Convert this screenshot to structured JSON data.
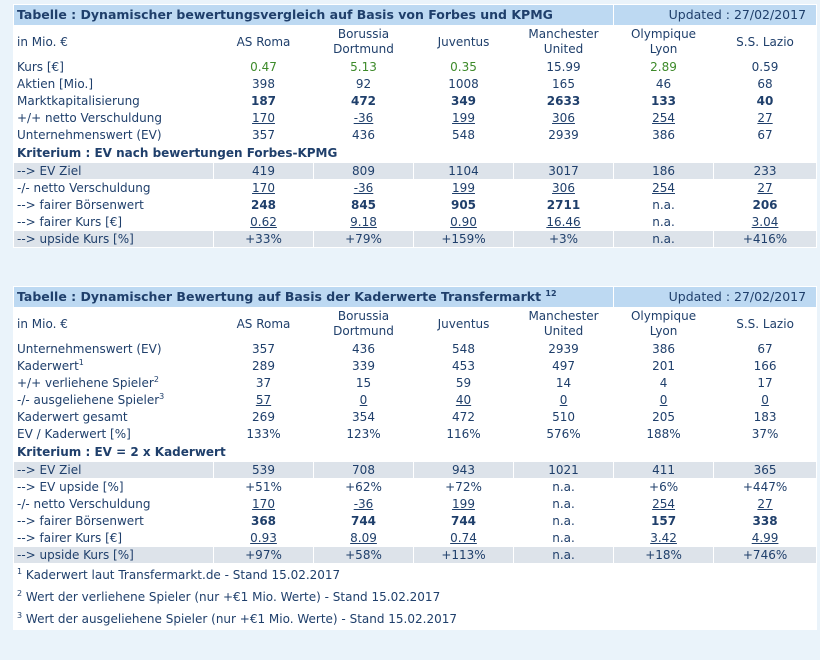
{
  "t1": {
    "title": "Tabelle : Dynamischer bewertungsvergleich auf Basis von Forbes und KPMG",
    "updated": "Updated : 27/02/2017",
    "unit": "in Mio. €",
    "clubs": [
      "AS Roma",
      "Borussia Dortmund",
      "Juventus",
      "Manchester United",
      "Olympique Lyon",
      "S.S. Lazio"
    ],
    "rows": [
      {
        "label": "Kurs [€]",
        "vals": [
          "0.47",
          "5.13",
          "0.35",
          "15.99",
          "2.89",
          "0.59"
        ]
      },
      {
        "label": "Aktien [Mio.]",
        "vals": [
          "398",
          "92",
          "1008",
          "165",
          "46",
          "68"
        ]
      },
      {
        "label": "Marktkapitalisierung",
        "vals": [
          "187",
          "472",
          "349",
          "2633",
          "133",
          "40"
        ]
      },
      {
        "label": "+/+ netto Verschuldung",
        "vals": [
          "170",
          "-36",
          "199",
          "306",
          "254",
          "27"
        ]
      },
      {
        "label": "Unternehmenswert (EV)",
        "vals": [
          "357",
          "436",
          "548",
          "2939",
          "386",
          "67"
        ]
      }
    ],
    "criterion": "Kriterium : EV nach bewertungen Forbes-KPMG",
    "rows2": [
      {
        "label": "--> EV Ziel",
        "vals": [
          "419",
          "809",
          "1104",
          "3017",
          "186",
          "233"
        ]
      },
      {
        "label": "-/- netto Verschuldung",
        "vals": [
          "170",
          "-36",
          "199",
          "306",
          "254",
          "27"
        ]
      },
      {
        "label": "--> fairer Börsenwert",
        "vals": [
          "248",
          "845",
          "905",
          "2711",
          "n.a.",
          "206"
        ]
      },
      {
        "label": "--> fairer Kurs [€]",
        "vals": [
          "0.62",
          "9.18",
          "0.90",
          "16.46",
          "n.a.",
          "3.04"
        ]
      },
      {
        "label": "--> upside Kurs [%]",
        "vals": [
          "+33%",
          "+79%",
          "+159%",
          "+3%",
          "n.a.",
          "+416%"
        ]
      }
    ]
  },
  "t2": {
    "title": "Tabelle : Dynamischer Bewertung auf Basis der Kaderwerte Transfermarkt",
    "title_sup": "12",
    "updated": "Updated : 27/02/2017",
    "unit": "in Mio. €",
    "clubs": [
      "AS Roma",
      "Borussia Dortmund",
      "Juventus",
      "Manchester United",
      "Olympique Lyon",
      "S.S. Lazio"
    ],
    "rows": [
      {
        "label": "Unternehmenswert (EV)",
        "sup": "",
        "vals": [
          "357",
          "436",
          "548",
          "2939",
          "386",
          "67"
        ]
      },
      {
        "label": "Kaderwert",
        "sup": "1",
        "vals": [
          "289",
          "339",
          "453",
          "497",
          "201",
          "166"
        ]
      },
      {
        "label": "+/+ verliehene Spieler",
        "sup": "2",
        "vals": [
          "37",
          "15",
          "59",
          "14",
          "4",
          "17"
        ]
      },
      {
        "label": "-/- ausgeliehene Spieler",
        "sup": "3",
        "vals": [
          "57",
          "0",
          "40",
          "0",
          "0",
          "0"
        ]
      },
      {
        "label": "Kaderwert gesamt",
        "sup": "",
        "vals": [
          "269",
          "354",
          "472",
          "510",
          "205",
          "183"
        ]
      },
      {
        "label": "EV / Kaderwert [%]",
        "sup": "",
        "vals": [
          "133%",
          "123%",
          "116%",
          "576%",
          "188%",
          "37%"
        ]
      }
    ],
    "criterion": "Kriterium : EV = 2 x Kaderwert",
    "rows2": [
      {
        "label": "--> EV Ziel",
        "vals": [
          "539",
          "708",
          "943",
          "1021",
          "411",
          "365"
        ]
      },
      {
        "label": "--> EV upside [%]",
        "vals": [
          "+51%",
          "+62%",
          "+72%",
          "n.a.",
          "+6%",
          "+447%"
        ]
      },
      {
        "label": "-/- netto Verschuldung",
        "vals": [
          "170",
          "-36",
          "199",
          "n.a.",
          "254",
          "27"
        ]
      },
      {
        "label": "--> fairer Börsenwert",
        "vals": [
          "368",
          "744",
          "744",
          "n.a.",
          "157",
          "338"
        ]
      },
      {
        "label": "--> fairer Kurs [€]",
        "vals": [
          "0.93",
          "8.09",
          "0.74",
          "n.a.",
          "3.42",
          "4.99"
        ]
      },
      {
        "label": "--> upside Kurs [%]",
        "vals": [
          "+97%",
          "+58%",
          "+113%",
          "n.a.",
          "+18%",
          "+746%"
        ]
      }
    ],
    "footnotes": [
      {
        "num": "1",
        "text": "Kaderwert laut Transfermarkt.de - Stand 15.02.2017"
      },
      {
        "num": "2",
        "text": "Wert der verliehene Spieler (nur +€1 Mio. Werte) - Stand 15.02.2017"
      },
      {
        "num": "3",
        "text": "Wert der ausgeliehene Spieler (nur +€1 Mio. Werte) - Stand 15.02.2017"
      }
    ]
  },
  "colors": {
    "header_bg": "#bdd9f2",
    "grey_row": "#dde3ea",
    "text": "#1f3f6b",
    "positive_price": "#3d8a2a",
    "page_bg": "#eaf3fa"
  }
}
